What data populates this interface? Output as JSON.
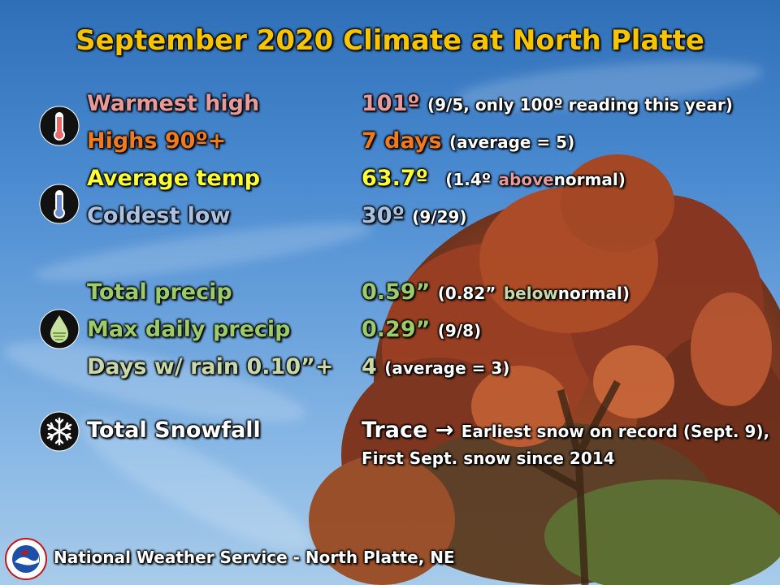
{
  "title": "September 2020 Climate at North Platte",
  "colors": {
    "title": "#f7c400",
    "warm": "#e89a9a",
    "hot": "#f07a1e",
    "avg": "#ffff33",
    "cold": "#a9c2e2",
    "precip": "#9ccb6a",
    "precip_light": "#c8d8a8",
    "white": "#ffffff"
  },
  "rows": {
    "warmest": {
      "label": "Warmest high",
      "value": "101º",
      "note": "(9/5, only 100º reading this year)"
    },
    "highs90": {
      "label": "Highs 90º+",
      "value": "7 days",
      "note": "(average = 5)"
    },
    "avgtemp": {
      "label": "Average temp",
      "value": "63.7º",
      "note_open": "(1.4º",
      "note_dir": "above",
      "note_close": "normal)"
    },
    "coldest": {
      "label": "Coldest low",
      "value": "30º",
      "note": "(9/29)"
    },
    "precip": {
      "label": "Total precip",
      "value": "0.59”",
      "note_open": "(0.82”",
      "note_dir": "below",
      "note_close": "normal)"
    },
    "maxprecip": {
      "label": "Max daily precip",
      "value": "0.29”",
      "note": "(9/8)"
    },
    "raindays": {
      "label": "Days w/ rain 0.10”+",
      "value": "4",
      "note": "(average = 3)"
    },
    "snow": {
      "label": "Total Snowfall",
      "value": "Trace",
      "arrow": "→",
      "note_line1": "Earliest snow on record (Sept. 9),",
      "note_line2": "First Sept. snow since 2014"
    }
  },
  "icons": [
    "thermometer-hot-icon",
    "thermometer-cold-icon",
    "raindrop-icon",
    "snowflake-icon"
  ],
  "footer": "National Weather Service  -  North Platte, NE"
}
